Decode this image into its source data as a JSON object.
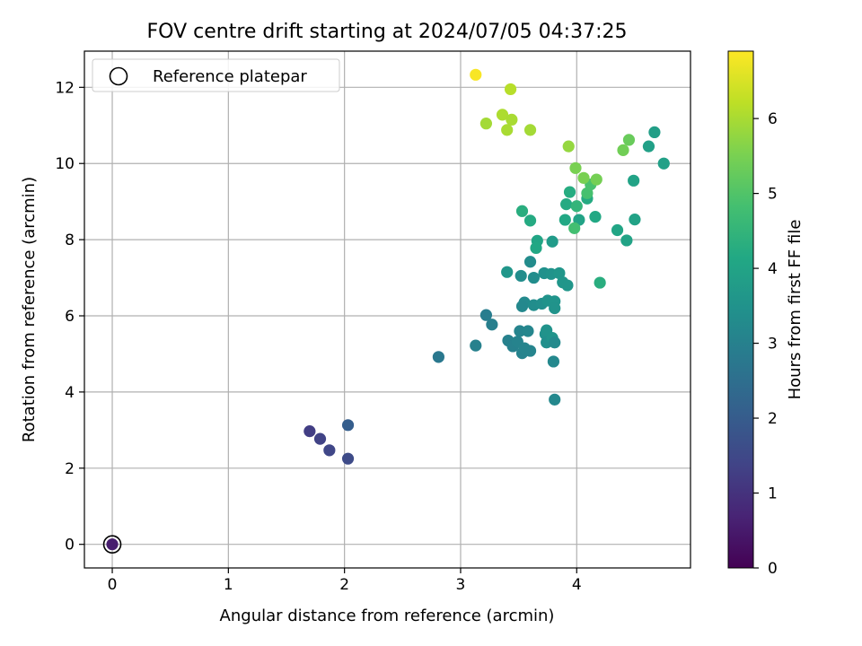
{
  "chart_data": {
    "type": "scatter",
    "title": "FOV centre drift starting at 2024/07/05 04:37:25",
    "xlabel": "Angular distance from reference (arcmin)",
    "ylabel": "Rotation from reference (arcmin)",
    "xlim": [
      -0.24,
      4.98
    ],
    "ylim": [
      -0.62,
      12.95
    ],
    "xticks": [
      "0",
      "1",
      "2",
      "3",
      "4"
    ],
    "yticks": [
      "0",
      "2",
      "4",
      "6",
      "8",
      "10",
      "12"
    ],
    "grid": true,
    "legend": {
      "position": "upper left",
      "label": "Reference platepar",
      "marker": "open circle"
    },
    "colorbar": {
      "label": "Hours from first FF file",
      "min": 0,
      "max": 6.9,
      "ticks": [
        "0",
        "1",
        "2",
        "3",
        "4",
        "5",
        "6"
      ],
      "colormap": "viridis"
    },
    "reference": {
      "x": 0,
      "y": 0
    },
    "points": [
      [
        0.0,
        0.0,
        0.55
      ],
      [
        1.7,
        2.97,
        1.25
      ],
      [
        1.79,
        2.77,
        1.35
      ],
      [
        1.87,
        2.47,
        1.45
      ],
      [
        2.03,
        2.25,
        1.55
      ],
      [
        2.03,
        3.13,
        2.05
      ],
      [
        2.81,
        4.92,
        2.75
      ],
      [
        3.13,
        5.22,
        3.0
      ],
      [
        3.22,
        6.02,
        2.9
      ],
      [
        3.27,
        5.77,
        2.95
      ],
      [
        3.41,
        5.35,
        3.0
      ],
      [
        3.45,
        5.2,
        3.0
      ],
      [
        3.49,
        5.32,
        3.05
      ],
      [
        3.51,
        5.6,
        3.1
      ],
      [
        3.53,
        5.02,
        3.05
      ],
      [
        3.55,
        5.15,
        3.1
      ],
      [
        3.58,
        5.6,
        3.15
      ],
      [
        3.6,
        5.08,
        3.1
      ],
      [
        3.52,
        7.05,
        3.35
      ],
      [
        3.55,
        6.35,
        3.25
      ],
      [
        3.53,
        6.25,
        3.2
      ],
      [
        3.6,
        7.42,
        3.3
      ],
      [
        3.63,
        6.28,
        3.35
      ],
      [
        3.63,
        7.0,
        3.35
      ],
      [
        3.7,
        6.32,
        3.4
      ],
      [
        3.72,
        7.12,
        3.45
      ],
      [
        3.73,
        5.52,
        3.45
      ],
      [
        3.74,
        5.62,
        3.5
      ],
      [
        3.74,
        5.3,
        3.4
      ],
      [
        3.75,
        6.4,
        3.5
      ],
      [
        3.78,
        7.1,
        3.5
      ],
      [
        3.79,
        5.42,
        3.55
      ],
      [
        3.81,
        6.38,
        3.55
      ],
      [
        3.81,
        6.2,
        3.5
      ],
      [
        3.81,
        5.3,
        3.25
      ],
      [
        3.8,
        4.8,
        3.2
      ],
      [
        3.81,
        3.8,
        3.2
      ],
      [
        3.85,
        7.12,
        3.6
      ],
      [
        3.88,
        6.88,
        3.6
      ],
      [
        3.92,
        6.8,
        3.6
      ],
      [
        3.4,
        7.15,
        3.6
      ],
      [
        3.79,
        7.95,
        3.75
      ],
      [
        3.66,
        7.97,
        4.05
      ],
      [
        3.65,
        7.78,
        4.1
      ],
      [
        3.6,
        8.5,
        4.2
      ],
      [
        3.53,
        8.75,
        4.3
      ],
      [
        3.9,
        8.52,
        4.15
      ],
      [
        3.91,
        8.93,
        4.2
      ],
      [
        3.94,
        9.25,
        4.25
      ],
      [
        4.0,
        8.88,
        4.5
      ],
      [
        4.02,
        8.52,
        4.0
      ],
      [
        3.98,
        8.3,
        4.8
      ],
      [
        4.09,
        9.08,
        4.2
      ],
      [
        4.09,
        9.22,
        4.85
      ],
      [
        4.12,
        9.45,
        4.9
      ],
      [
        4.16,
        8.6,
        4.15
      ],
      [
        4.2,
        6.87,
        4.3
      ],
      [
        4.35,
        8.25,
        4.05
      ],
      [
        4.43,
        7.98,
        4.0
      ],
      [
        4.49,
        9.55,
        4.0
      ],
      [
        4.5,
        8.53,
        3.95
      ],
      [
        4.62,
        10.45,
        3.9
      ],
      [
        4.67,
        10.82,
        3.85
      ],
      [
        4.75,
        10.0,
        3.9
      ],
      [
        4.45,
        10.62,
        5.3
      ],
      [
        4.4,
        10.35,
        5.4
      ],
      [
        4.17,
        9.58,
        5.45
      ],
      [
        4.06,
        9.62,
        5.5
      ],
      [
        3.99,
        9.88,
        5.5
      ],
      [
        3.93,
        10.45,
        5.8
      ],
      [
        3.22,
        11.05,
        5.95
      ],
      [
        3.36,
        11.28,
        6.05
      ],
      [
        3.4,
        10.88,
        6.0
      ],
      [
        3.44,
        11.15,
        6.0
      ],
      [
        3.43,
        11.95,
        6.15
      ],
      [
        3.6,
        10.88,
        5.95
      ],
      [
        3.13,
        12.33,
        6.85
      ]
    ]
  }
}
